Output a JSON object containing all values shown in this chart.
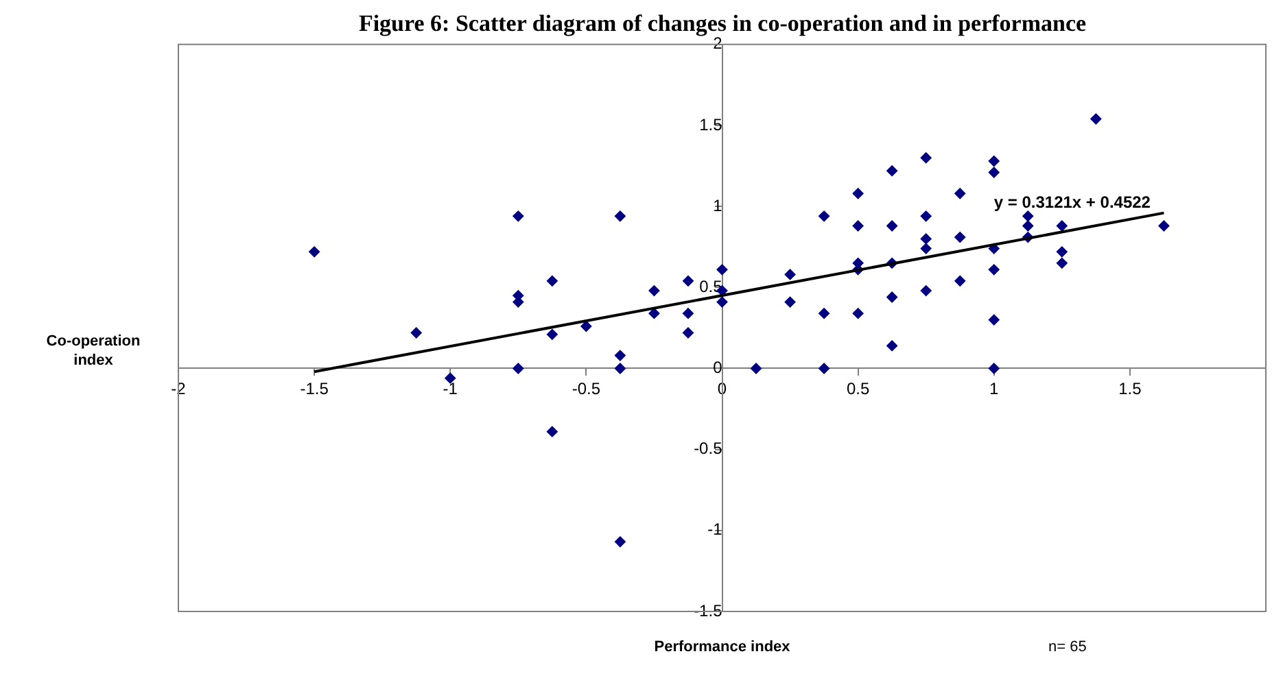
{
  "chart_data": {
    "type": "scatter",
    "title": "Figure 6: Scatter diagram of changes in co-operation and in performance",
    "xlabel": "Performance index",
    "ylabel": "Co-operation index",
    "xlim": [
      -2,
      2
    ],
    "ylim": [
      -1.5,
      2
    ],
    "xticks": [
      -2,
      -1.5,
      -1,
      -0.5,
      0,
      0.5,
      1,
      1.5
    ],
    "yticks": [
      -1.5,
      -1,
      -0.5,
      0,
      0.5,
      1,
      1.5,
      2
    ],
    "grid": false,
    "legend": false,
    "series": [
      {
        "type": "scatter",
        "color": "#000080",
        "marker": "diamond",
        "x": [
          -1.5,
          -1.125,
          -1,
          -0.75,
          -0.75,
          -0.75,
          -0.75,
          -0.625,
          -0.625,
          -0.625,
          -0.5,
          -0.375,
          -0.375,
          -0.375,
          -0.375,
          -0.25,
          -0.25,
          -0.125,
          -0.125,
          -0.125,
          0,
          0,
          0,
          0.125,
          0.25,
          0.25,
          0.375,
          0.375,
          0.375,
          0.5,
          0.5,
          0.5,
          0.5,
          0.5,
          0.625,
          0.625,
          0.625,
          0.625,
          0.625,
          0.75,
          0.75,
          0.75,
          0.75,
          0.75,
          0.875,
          0.875,
          0.875,
          1,
          1,
          1,
          1,
          1,
          1,
          1.125,
          1.125,
          1.125,
          1.25,
          1.25,
          1.25,
          1.375,
          1.625
        ],
        "values": [
          0.72,
          0.22,
          -0.06,
          0.94,
          0.45,
          0.41,
          0,
          0.54,
          0.21,
          -0.39,
          0.26,
          0.94,
          0.08,
          0,
          -1.07,
          0.48,
          0.34,
          0.54,
          0.34,
          0.22,
          0.61,
          0.48,
          0.41,
          0,
          0.58,
          0.41,
          0.94,
          0.34,
          0,
          1.08,
          0.88,
          0.65,
          0.61,
          0.34,
          1.22,
          0.88,
          0.65,
          0.44,
          0.14,
          1.3,
          0.94,
          0.8,
          0.74,
          0.48,
          1.08,
          0.81,
          0.54,
          1.28,
          1.21,
          0.74,
          0.61,
          0.3,
          0,
          0.94,
          0.88,
          0.81,
          0.88,
          0.72,
          0.65,
          1.54,
          0.88
        ]
      },
      {
        "type": "line",
        "color": "#000000",
        "marker": "none",
        "x": [
          -1.5,
          1.625
        ],
        "values": [
          -0.02,
          0.96
        ]
      }
    ],
    "annotations": [
      "y = 0.3121x + 0.4522",
      "n= 65"
    ]
  }
}
